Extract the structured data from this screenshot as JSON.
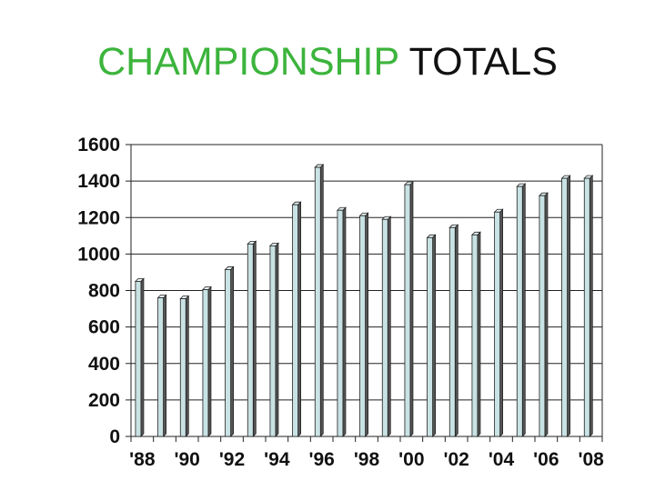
{
  "title": {
    "part1": "CHAMPIONSHIP",
    "part2": "TOTALS",
    "part1_color": "#3cb43c",
    "part2_color": "#111111"
  },
  "chart_data": {
    "type": "bar",
    "title": "CHAMPIONSHIP TOTALS",
    "xlabel": "",
    "ylabel": "",
    "ylim": [
      0,
      1600
    ],
    "yticks": [
      0,
      200,
      400,
      600,
      800,
      1000,
      1200,
      1400,
      1600
    ],
    "grid": true,
    "categories": [
      "'88",
      "'89",
      "'90",
      "'91",
      "'92",
      "'93",
      "'94",
      "'95",
      "'96",
      "'97",
      "'98",
      "'99",
      "'00",
      "'01",
      "'02",
      "'03",
      "'04",
      "'05",
      "'06",
      "'07",
      "'08"
    ],
    "xtick_labels": [
      "'88",
      "'90",
      "'92",
      "'94",
      "'96",
      "'98",
      "'00",
      "'02",
      "'04",
      "'06",
      "'08"
    ],
    "values": [
      850,
      760,
      755,
      805,
      915,
      1055,
      1045,
      1270,
      1475,
      1240,
      1210,
      1190,
      1380,
      1090,
      1145,
      1105,
      1230,
      1370,
      1320,
      1415,
      1415
    ],
    "bar_color": "#c9e2e4",
    "bar_edge_color": "#222222"
  }
}
